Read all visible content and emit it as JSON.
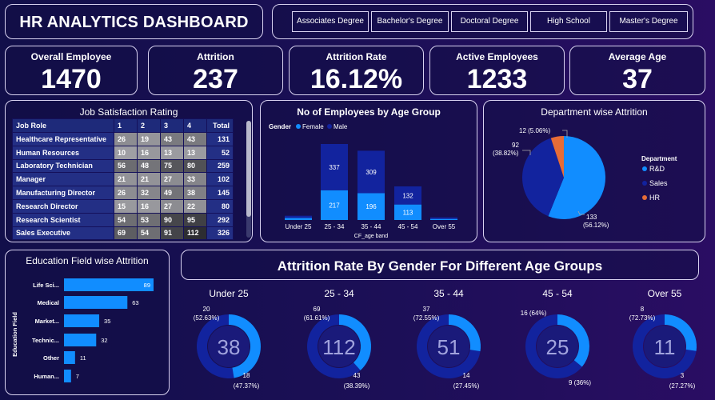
{
  "header": {
    "title": "HR ANALYTICS DASHBOARD"
  },
  "education_slicer": {
    "options": [
      "Associates Degree",
      "Bachelor's Degree",
      "Doctoral Degree",
      "High School",
      "Master's Degree"
    ]
  },
  "kpis": [
    {
      "label": "Overall Employee",
      "value": "1470"
    },
    {
      "label": "Attrition",
      "value": "237"
    },
    {
      "label": "Attrition Rate",
      "value": "16.12%"
    },
    {
      "label": "Active Employees",
      "value": "1233"
    },
    {
      "label": "Average Age",
      "value": "37"
    }
  ],
  "job_satisfaction": {
    "title": "Job Satisfaction Rating",
    "columns": [
      "Job Role",
      "1",
      "2",
      "3",
      "4",
      "Total"
    ],
    "rows": [
      {
        "role": "Healthcare Representative",
        "v": [
          26,
          19,
          43,
          43
        ],
        "total": 131
      },
      {
        "role": "Human Resources",
        "v": [
          10,
          16,
          13,
          13
        ],
        "total": 52
      },
      {
        "role": "Laboratory Technician",
        "v": [
          56,
          48,
          75,
          80
        ],
        "total": 259
      },
      {
        "role": "Manager",
        "v": [
          21,
          21,
          27,
          33
        ],
        "total": 102
      },
      {
        "role": "Manufacturing Director",
        "v": [
          26,
          32,
          49,
          38
        ],
        "total": 145
      },
      {
        "role": "Research Director",
        "v": [
          15,
          16,
          27,
          22
        ],
        "total": 80
      },
      {
        "role": "Research Scientist",
        "v": [
          54,
          53,
          90,
          95
        ],
        "total": 292
      },
      {
        "role": "Sales Executive",
        "v": [
          69,
          54,
          91,
          112
        ],
        "total": 326
      }
    ]
  },
  "chart_data": [
    {
      "type": "bar",
      "title": "No of Employees by Age Group",
      "xlabel": "CF_age band",
      "legend_title": "Gender",
      "categories": [
        "Under 25",
        "25 - 34",
        "35 - 44",
        "45 - 54",
        "Over 55"
      ],
      "series": [
        {
          "name": "Female",
          "values": [
            15,
            217,
            196,
            113,
            8
          ],
          "labels": [
            "",
            "217",
            "196",
            "113",
            ""
          ]
        },
        {
          "name": "Male",
          "values": [
            16,
            337,
            309,
            132,
            11
          ],
          "labels": [
            "",
            "337",
            "309",
            "132",
            ""
          ]
        }
      ],
      "colors": {
        "Female": "#118dff",
        "Male": "#12239e"
      }
    },
    {
      "type": "pie",
      "title": "Department wise Attrition",
      "legend_title": "Department",
      "slices": [
        {
          "name": "R&D",
          "value": 133,
          "label": "133",
          "pct_label": "(56.12%)",
          "color": "#118dff"
        },
        {
          "name": "Sales",
          "value": 92,
          "label": "92",
          "pct_label": "(38.82%)",
          "color": "#12239e"
        },
        {
          "name": "HR",
          "value": 12,
          "label": "12 (5.06%)",
          "pct_label": "",
          "color": "#e66c37"
        }
      ]
    },
    {
      "type": "bar",
      "title": "Education Field wise Attrition",
      "ylabel": "Education Field",
      "categories": [
        "Life Sci...",
        "Medical",
        "Market...",
        "Technic...",
        "Other",
        "Human..."
      ],
      "values": [
        89,
        63,
        35,
        32,
        11,
        7
      ],
      "color": "#118dff"
    },
    {
      "type": "pie",
      "title": "Attrition Rate By Gender For Different Age Groups",
      "donuts": [
        {
          "name": "Under 25",
          "total": "38",
          "male": 20,
          "male_label": "20",
          "male_pct": "(52.63%)",
          "female": 18,
          "female_label": "18",
          "female_pct": "(47.37%)"
        },
        {
          "name": "25 - 34",
          "total": "112",
          "male": 69,
          "male_label": "69",
          "male_pct": "(61.61%)",
          "female": 43,
          "female_label": "43",
          "female_pct": "(38.39%)"
        },
        {
          "name": "35 - 44",
          "total": "51",
          "male": 37,
          "male_label": "37",
          "male_pct": "(72.55%)",
          "female": 14,
          "female_label": "14",
          "female_pct": "(27.45%)"
        },
        {
          "name": "45 - 54",
          "total": "25",
          "male": 16,
          "male_label": "16 (64%)",
          "male_pct": "",
          "female": 9,
          "female_label": "9 (36%)",
          "female_pct": ""
        },
        {
          "name": "Over 55",
          "total": "11",
          "male": 8,
          "male_label": "8",
          "male_pct": "(72.73%)",
          "female": 3,
          "female_label": "3",
          "female_pct": "(27.27%)"
        }
      ]
    }
  ]
}
